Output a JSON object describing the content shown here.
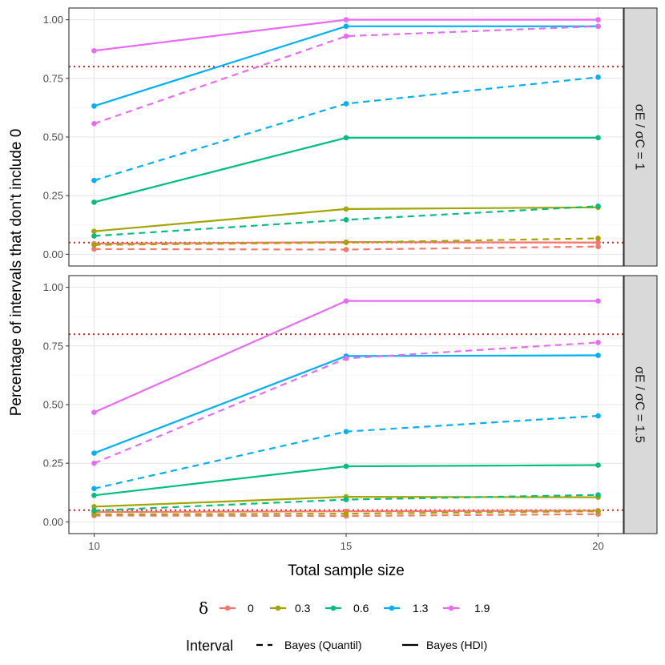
{
  "chart_data": {
    "type": "line",
    "xlabel": "Total sample size",
    "ylabel": "Percentage of intervals that don't include 0",
    "x": [
      10,
      15,
      20
    ],
    "xlim": [
      9.5,
      20.5
    ],
    "ylim": [
      -0.05,
      1.05
    ],
    "xticks": [
      "10",
      "15",
      "20"
    ],
    "yticks": [
      "0.00",
      "0.25",
      "0.50",
      "0.75",
      "1.00"
    ],
    "reference_lines": [
      0.05,
      0.8
    ],
    "reference_color": "#E41A1C",
    "grid": true,
    "legend": {
      "color_title": "δ",
      "color_entries": [
        {
          "label": "0",
          "color": "#F8766D"
        },
        {
          "label": "0.3",
          "color": "#A3A500"
        },
        {
          "label": "0.6",
          "color": "#00BF7D"
        },
        {
          "label": "1.3",
          "color": "#00B0F6"
        },
        {
          "label": "1.9",
          "color": "#E76BF3"
        }
      ],
      "linetype_title": "Interval",
      "linetype_entries": [
        {
          "label": "Bayes (Quantil)",
          "dash": "dashed"
        },
        {
          "label": "Bayes (HDI)",
          "dash": "solid"
        }
      ],
      "position": "bottom"
    },
    "panels": [
      {
        "strip_label": "σE / σC = 1",
        "series": [
          {
            "delta": "0",
            "interval": "Bayes (HDI)",
            "values": [
              0.045,
              0.052,
              0.05
            ]
          },
          {
            "delta": "0",
            "interval": "Bayes (Quantil)",
            "values": [
              0.022,
              0.02,
              0.033
            ]
          },
          {
            "delta": "0.3",
            "interval": "Bayes (HDI)",
            "values": [
              0.098,
              0.193,
              0.2
            ]
          },
          {
            "delta": "0.3",
            "interval": "Bayes (Quantil)",
            "values": [
              0.04,
              0.05,
              0.068
            ]
          },
          {
            "delta": "0.6",
            "interval": "Bayes (HDI)",
            "values": [
              0.222,
              0.497,
              0.497
            ]
          },
          {
            "delta": "0.6",
            "interval": "Bayes (Quantil)",
            "values": [
              0.078,
              0.147,
              0.205
            ]
          },
          {
            "delta": "1.3",
            "interval": "Bayes (HDI)",
            "values": [
              0.632,
              0.972,
              0.972
            ]
          },
          {
            "delta": "1.3",
            "interval": "Bayes (Quantil)",
            "values": [
              0.315,
              0.642,
              0.755
            ]
          },
          {
            "delta": "1.9",
            "interval": "Bayes (HDI)",
            "values": [
              0.868,
              1.0,
              1.0
            ]
          },
          {
            "delta": "1.9",
            "interval": "Bayes (Quantil)",
            "values": [
              0.557,
              0.93,
              0.972
            ]
          }
        ]
      },
      {
        "strip_label": "σE / σC = 1.5",
        "series": [
          {
            "delta": "0",
            "interval": "Bayes (HDI)",
            "values": [
              0.042,
              0.045,
              0.048
            ]
          },
          {
            "delta": "0",
            "interval": "Bayes (Quantil)",
            "values": [
              0.027,
              0.025,
              0.033
            ]
          },
          {
            "delta": "0.3",
            "interval": "Bayes (HDI)",
            "values": [
              0.065,
              0.107,
              0.105
            ]
          },
          {
            "delta": "0.3",
            "interval": "Bayes (Quantil)",
            "values": [
              0.032,
              0.035,
              0.045
            ]
          },
          {
            "delta": "0.6",
            "interval": "Bayes (HDI)",
            "values": [
              0.113,
              0.237,
              0.242
            ]
          },
          {
            "delta": "0.6",
            "interval": "Bayes (Quantil)",
            "values": [
              0.048,
              0.095,
              0.115
            ]
          },
          {
            "delta": "1.3",
            "interval": "Bayes (HDI)",
            "values": [
              0.293,
              0.707,
              0.71
            ]
          },
          {
            "delta": "1.3",
            "interval": "Bayes (Quantil)",
            "values": [
              0.142,
              0.385,
              0.452
            ]
          },
          {
            "delta": "1.9",
            "interval": "Bayes (HDI)",
            "values": [
              0.467,
              0.942,
              0.942
            ]
          },
          {
            "delta": "1.9",
            "interval": "Bayes (Quantil)",
            "values": [
              0.25,
              0.697,
              0.765
            ]
          }
        ]
      }
    ]
  }
}
